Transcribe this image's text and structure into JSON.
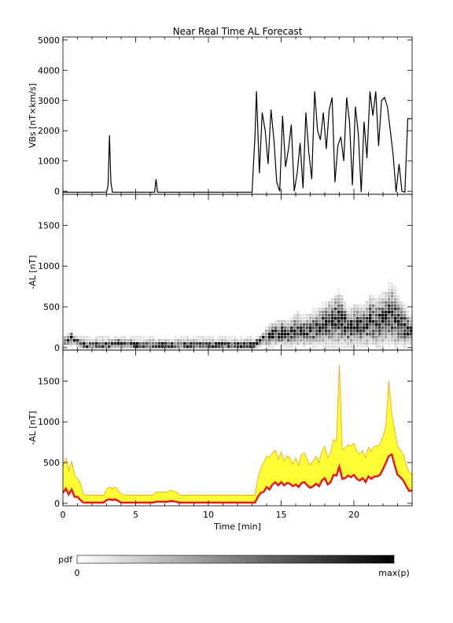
{
  "chart_data": [
    {
      "type": "line",
      "title": "Near Real Time AL Forecast",
      "ylabel": "VBs [nT×km/s]",
      "xlim": [
        0,
        24
      ],
      "ylim": [
        -100,
        5100
      ],
      "yticks": [
        0,
        1000,
        2000,
        3000,
        4000,
        5000
      ],
      "x_tick_labels_shown": false,
      "series": [
        {
          "x": [
            0,
            1,
            2,
            3.0,
            3.1,
            3.2,
            3.3,
            3.4,
            4,
            5,
            6.3,
            6.4,
            6.5,
            7,
            8,
            9,
            10,
            11,
            12,
            12.8,
            13.0,
            13.1,
            13.2,
            13.3,
            13.5,
            13.7,
            13.9,
            14.1,
            14.3,
            14.5,
            14.7,
            14.9,
            15.1,
            15.3,
            15.5,
            15.7,
            15.9,
            16.1,
            16.3,
            16.5,
            16.7,
            16.9,
            17.1,
            17.3,
            17.5,
            17.7,
            17.9,
            18.1,
            18.3,
            18.5,
            18.7,
            18.9,
            19.1,
            19.3,
            19.5,
            19.7,
            19.9,
            20.1,
            20.3,
            20.5,
            20.7,
            20.9,
            21.1,
            21.3,
            21.5,
            21.7,
            21.9,
            22.1,
            22.3,
            22.5,
            22.7,
            22.9,
            23.1,
            23.3,
            23.5,
            23.7,
            23.9,
            24.0
          ],
          "y": [
            -30,
            -30,
            -30,
            -30,
            200,
            1850,
            300,
            -30,
            -30,
            -30,
            -30,
            400,
            -30,
            -30,
            -30,
            -30,
            -30,
            -30,
            -30,
            -30,
            -30,
            900,
            1800,
            3300,
            600,
            2600,
            2000,
            900,
            2700,
            1700,
            300,
            0,
            2500,
            800,
            1400,
            2200,
            0,
            600,
            1600,
            100,
            2600,
            1300,
            400,
            3300,
            2000,
            1700,
            2600,
            1400,
            2700,
            3100,
            300,
            1500,
            1800,
            1000,
            3100,
            2300,
            200,
            2800,
            1900,
            -30,
            2300,
            1100,
            3300,
            2500,
            3300,
            1500,
            3000,
            3100,
            2800,
            2000,
            1200,
            -30,
            900,
            0,
            -30,
            2400,
            2400,
            2400
          ]
        }
      ]
    },
    {
      "type": "heatmap",
      "ylabel": "-AL [nT]",
      "xlim": [
        0,
        24
      ],
      "ylim": [
        -30,
        1880
      ],
      "yticks": [
        0,
        500,
        1000,
        1500
      ],
      "x_tick_labels_shown": false,
      "pdf_mode_x": [
        0,
        0.5,
        1,
        1.5,
        2,
        3,
        3.5,
        4,
        5,
        6,
        7,
        8,
        9,
        10,
        11,
        12,
        13,
        13.5,
        14,
        14.5,
        15,
        15.5,
        16,
        16.5,
        17,
        17.5,
        18,
        18.5,
        19,
        19.5,
        20,
        20.5,
        21,
        21.5,
        22,
        22.5,
        23,
        23.5,
        24
      ],
      "pdf_mode_y": [
        60,
        90,
        40,
        10,
        10,
        10,
        40,
        30,
        10,
        10,
        10,
        10,
        10,
        10,
        10,
        10,
        10,
        60,
        120,
        150,
        160,
        150,
        200,
        180,
        200,
        230,
        260,
        300,
        330,
        220,
        250,
        230,
        300,
        290,
        320,
        380,
        300,
        220,
        150
      ]
    },
    {
      "type": "area",
      "ylabel": "-AL [nT]",
      "xlabel": "Time [min]",
      "xlim": [
        0,
        24
      ],
      "ylim": [
        -30,
        1880
      ],
      "xticks": [
        0,
        5,
        10,
        15,
        20
      ],
      "yticks": [
        0,
        500,
        1000,
        1500
      ],
      "series": [
        {
          "name": "median",
          "x": [
            0,
            0.2,
            0.4,
            0.6,
            0.8,
            1.0,
            1.2,
            1.4,
            1.6,
            2.8,
            3.0,
            3.2,
            3.4,
            3.6,
            3.8,
            4.0,
            4.3,
            6.2,
            6.4,
            6.6,
            7.2,
            7.4,
            7.8,
            8.0,
            13.2,
            13.4,
            13.6,
            13.8,
            14.0,
            14.2,
            14.4,
            14.6,
            14.8,
            15.0,
            15.2,
            15.4,
            15.6,
            15.8,
            16.0,
            16.2,
            16.4,
            16.6,
            16.8,
            17.0,
            17.2,
            17.4,
            17.6,
            17.8,
            18.0,
            18.2,
            18.4,
            18.6,
            18.8,
            19.0,
            19.2,
            19.4,
            19.6,
            19.8,
            20.0,
            20.2,
            20.4,
            20.6,
            20.8,
            21.0,
            21.2,
            21.4,
            21.6,
            21.8,
            22.0,
            22.2,
            22.4,
            22.6,
            22.8,
            23.0,
            23.2,
            23.4,
            23.6,
            23.8,
            24.0
          ],
          "y": [
            130,
            180,
            110,
            170,
            80,
            80,
            40,
            10,
            10,
            10,
            40,
            50,
            40,
            50,
            30,
            10,
            10,
            10,
            20,
            20,
            20,
            30,
            20,
            10,
            10,
            80,
            130,
            140,
            200,
            170,
            230,
            260,
            220,
            260,
            220,
            250,
            240,
            210,
            230,
            200,
            250,
            260,
            220,
            190,
            210,
            240,
            210,
            280,
            310,
            230,
            260,
            350,
            340,
            450,
            300,
            310,
            340,
            320,
            350,
            300,
            280,
            310,
            260,
            330,
            300,
            330,
            330,
            350,
            420,
            500,
            580,
            600,
            470,
            350,
            320,
            280,
            210,
            150,
            160
          ]
        },
        {
          "name": "band-upper",
          "x": [
            0,
            0.2,
            0.4,
            0.6,
            0.8,
            1.0,
            1.2,
            1.4,
            1.6,
            2.8,
            3.0,
            3.2,
            3.4,
            3.6,
            3.8,
            4.0,
            4.3,
            6.2,
            6.4,
            6.6,
            7.2,
            7.4,
            7.8,
            8.0,
            13.2,
            13.4,
            13.6,
            13.8,
            14.0,
            14.2,
            14.4,
            14.6,
            14.8,
            15.0,
            15.2,
            15.4,
            15.6,
            15.8,
            16.0,
            16.2,
            16.4,
            16.6,
            16.8,
            17.0,
            17.2,
            17.4,
            17.6,
            17.8,
            18.0,
            18.2,
            18.4,
            18.6,
            18.8,
            19.0,
            19.2,
            19.4,
            19.6,
            19.8,
            20.0,
            20.2,
            20.4,
            20.6,
            20.8,
            21.0,
            21.2,
            21.4,
            21.6,
            21.8,
            22.0,
            22.2,
            22.4,
            22.6,
            22.8,
            23.0,
            23.2,
            23.4,
            23.6,
            23.8,
            24.0
          ],
          "y": [
            450,
            560,
            400,
            520,
            350,
            300,
            250,
            110,
            100,
            100,
            170,
            200,
            180,
            200,
            160,
            110,
            100,
            100,
            140,
            140,
            140,
            160,
            140,
            100,
            100,
            300,
            430,
            500,
            580,
            560,
            620,
            650,
            540,
            630,
            520,
            580,
            560,
            480,
            560,
            460,
            600,
            620,
            530,
            470,
            520,
            580,
            500,
            640,
            700,
            560,
            620,
            780,
            760,
            1700,
            660,
            680,
            720,
            700,
            740,
            640,
            600,
            650,
            560,
            690,
            640,
            700,
            700,
            730,
            820,
            950,
            1500,
            1100,
            900,
            700,
            650,
            600,
            470,
            380,
            360
          ]
        }
      ]
    }
  ],
  "xlabel": "Time [min]",
  "colorbar": {
    "label": "pdf",
    "min_label": "0",
    "max_label": "max(p)"
  }
}
